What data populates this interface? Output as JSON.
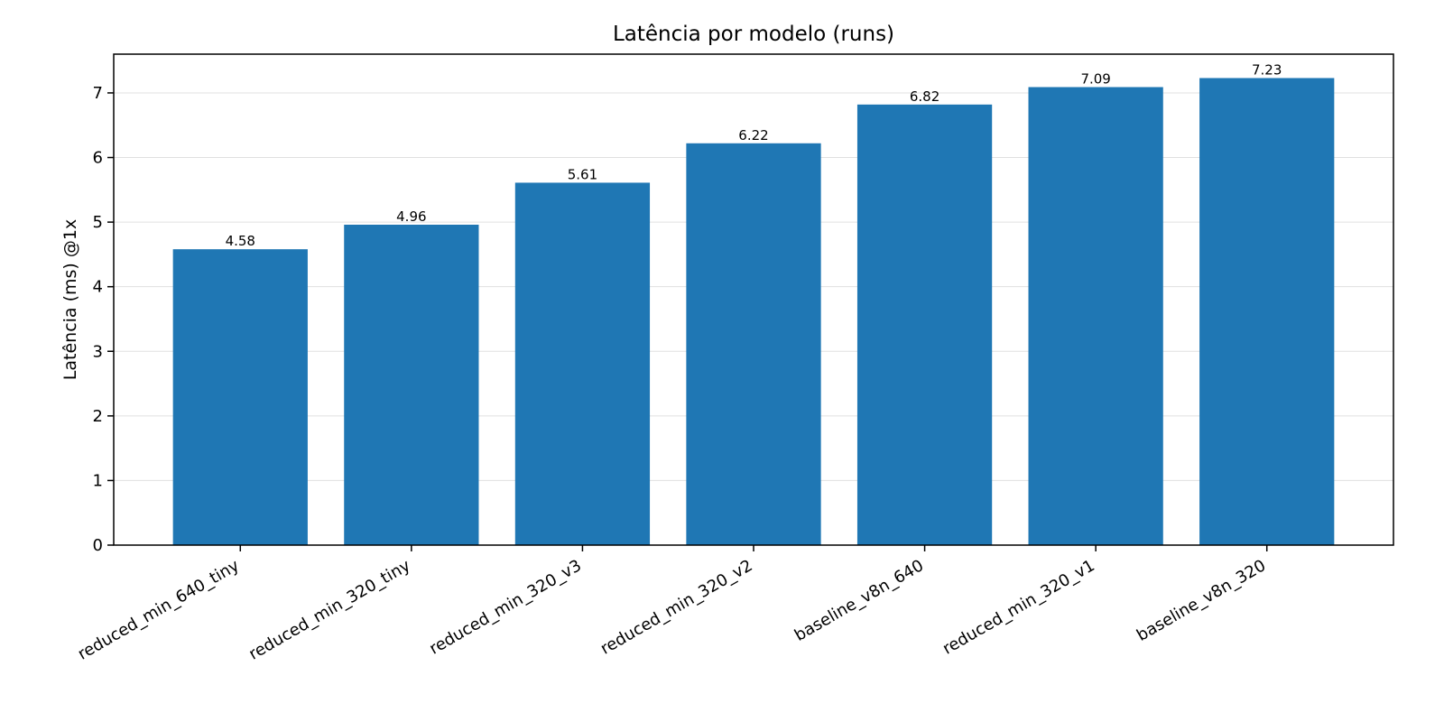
{
  "chart_data": {
    "type": "bar",
    "title": "Latência por modelo (runs)",
    "xlabel": "",
    "ylabel": "Latência (ms) @1x",
    "categories": [
      "reduced_min_640_tiny",
      "reduced_min_320_tiny",
      "reduced_min_320_v3",
      "reduced_min_320_v2",
      "baseline_v8n_640",
      "reduced_min_320_v1",
      "baseline_v8n_320"
    ],
    "values": [
      4.58,
      4.96,
      5.61,
      6.22,
      6.82,
      7.09,
      7.23
    ],
    "data_labels": [
      "4.58",
      "4.96",
      "5.61",
      "6.22",
      "6.82",
      "7.09",
      "7.23"
    ],
    "ylim": [
      0,
      7.6
    ],
    "yticks": [
      0,
      1,
      2,
      3,
      4,
      5,
      6,
      7
    ],
    "ytick_labels": [
      "0",
      "1",
      "2",
      "3",
      "4",
      "5",
      "6",
      "7"
    ],
    "grid": "horizontal",
    "bar_color": "#1f77b4",
    "grid_color": "#e0e0e0"
  }
}
